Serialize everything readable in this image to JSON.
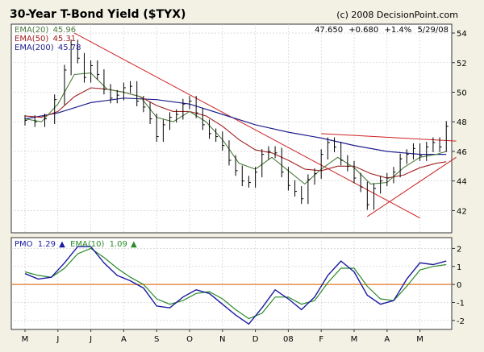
{
  "chart_data": [
    {
      "type": "line",
      "title": "30-Year T-Bond Yield ($TYX)",
      "copyright": "(c) 2008 DecisionPoint.com",
      "quote": {
        "last": "47.650",
        "change": "+0.680",
        "percent": "+1.4%",
        "date": "5/29/08"
      },
      "legend": [
        {
          "name": "EMA(20)",
          "value": "45.96",
          "color": "#4a7a3a"
        },
        {
          "name": "EMA(50)",
          "value": "45.31",
          "color": "#a02020"
        },
        {
          "name": "EMA(200)",
          "value": "45.78",
          "color": "#202090"
        }
      ],
      "x_months": [
        "M",
        "J",
        "J",
        "A",
        "S",
        "O",
        "N",
        "D",
        "08",
        "F",
        "M",
        "A",
        "M"
      ],
      "ylim": [
        40.5,
        54.6
      ],
      "y_ticks": [
        42,
        44,
        46,
        48,
        50,
        52,
        54
      ],
      "price_series": [
        {
          "t": 0,
          "y": 48.1
        },
        {
          "t": 0.3,
          "y": 48.0
        },
        {
          "t": 0.6,
          "y": 48.2
        },
        {
          "t": 0.9,
          "y": 49.5
        },
        {
          "t": 1.2,
          "y": 51.5
        },
        {
          "t": 1.4,
          "y": 53.2
        },
        {
          "t": 1.6,
          "y": 52.3
        },
        {
          "t": 1.8,
          "y": 51.0
        },
        {
          "t": 2.0,
          "y": 51.8
        },
        {
          "t": 2.2,
          "y": 51.2
        },
        {
          "t": 2.4,
          "y": 50.2
        },
        {
          "t": 2.6,
          "y": 49.6
        },
        {
          "t": 2.8,
          "y": 49.8
        },
        {
          "t": 3.0,
          "y": 50.3
        },
        {
          "t": 3.2,
          "y": 50.4
        },
        {
          "t": 3.4,
          "y": 49.4
        },
        {
          "t": 3.6,
          "y": 49.0
        },
        {
          "t": 3.8,
          "y": 48.2
        },
        {
          "t": 4.0,
          "y": 47.0
        },
        {
          "t": 4.2,
          "y": 47.8
        },
        {
          "t": 4.4,
          "y": 48.3
        },
        {
          "t": 4.6,
          "y": 48.5
        },
        {
          "t": 4.8,
          "y": 49.2
        },
        {
          "t": 5.0,
          "y": 49.4
        },
        {
          "t": 5.2,
          "y": 48.6
        },
        {
          "t": 5.4,
          "y": 47.8
        },
        {
          "t": 5.6,
          "y": 47.2
        },
        {
          "t": 5.8,
          "y": 47.0
        },
        {
          "t": 6.0,
          "y": 46.4
        },
        {
          "t": 6.2,
          "y": 45.4
        },
        {
          "t": 6.4,
          "y": 44.7
        },
        {
          "t": 6.6,
          "y": 44.0
        },
        {
          "t": 6.8,
          "y": 43.9
        },
        {
          "t": 7.0,
          "y": 44.6
        },
        {
          "t": 7.2,
          "y": 45.8
        },
        {
          "t": 7.4,
          "y": 46.0
        },
        {
          "t": 7.6,
          "y": 45.9
        },
        {
          "t": 7.8,
          "y": 44.6
        },
        {
          "t": 8.0,
          "y": 43.7
        },
        {
          "t": 8.2,
          "y": 43.3
        },
        {
          "t": 8.4,
          "y": 42.8
        },
        {
          "t": 8.6,
          "y": 44.1
        },
        {
          "t": 8.8,
          "y": 44.5
        },
        {
          "t": 9.0,
          "y": 45.8
        },
        {
          "t": 9.2,
          "y": 46.6
        },
        {
          "t": 9.4,
          "y": 46.3
        },
        {
          "t": 9.6,
          "y": 45.4
        },
        {
          "t": 9.8,
          "y": 45.0
        },
        {
          "t": 10.0,
          "y": 44.2
        },
        {
          "t": 10.2,
          "y": 43.6
        },
        {
          "t": 10.4,
          "y": 42.4
        },
        {
          "t": 10.6,
          "y": 43.5
        },
        {
          "t": 10.8,
          "y": 44.0
        },
        {
          "t": 11.0,
          "y": 44.2
        },
        {
          "t": 11.2,
          "y": 44.6
        },
        {
          "t": 11.4,
          "y": 45.5
        },
        {
          "t": 11.6,
          "y": 45.8
        },
        {
          "t": 11.8,
          "y": 46.2
        },
        {
          "t": 12.0,
          "y": 45.7
        },
        {
          "t": 12.2,
          "y": 46.3
        },
        {
          "t": 12.4,
          "y": 46.6
        },
        {
          "t": 12.6,
          "y": 46.3
        },
        {
          "t": 12.8,
          "y": 47.7
        }
      ],
      "ema20": [
        {
          "t": 0,
          "y": 48.2
        },
        {
          "t": 0.5,
          "y": 48.0
        },
        {
          "t": 1.0,
          "y": 49.2
        },
        {
          "t": 1.5,
          "y": 51.2
        },
        {
          "t": 2.0,
          "y": 51.3
        },
        {
          "t": 2.5,
          "y": 50.2
        },
        {
          "t": 3.0,
          "y": 50.0
        },
        {
          "t": 3.5,
          "y": 49.7
        },
        {
          "t": 4.0,
          "y": 48.3
        },
        {
          "t": 4.5,
          "y": 48.0
        },
        {
          "t": 5.0,
          "y": 48.7
        },
        {
          "t": 5.5,
          "y": 48.0
        },
        {
          "t": 6.0,
          "y": 46.8
        },
        {
          "t": 6.5,
          "y": 45.2
        },
        {
          "t": 7.0,
          "y": 44.8
        },
        {
          "t": 7.5,
          "y": 45.6
        },
        {
          "t": 8.0,
          "y": 44.7
        },
        {
          "t": 8.5,
          "y": 43.8
        },
        {
          "t": 9.0,
          "y": 44.8
        },
        {
          "t": 9.5,
          "y": 45.6
        },
        {
          "t": 10.0,
          "y": 44.9
        },
        {
          "t": 10.5,
          "y": 43.8
        },
        {
          "t": 11.0,
          "y": 43.9
        },
        {
          "t": 11.5,
          "y": 44.9
        },
        {
          "t": 12.0,
          "y": 45.6
        },
        {
          "t": 12.5,
          "y": 45.8
        },
        {
          "t": 12.8,
          "y": 46.0
        }
      ],
      "ema50": [
        {
          "t": 0,
          "y": 48.4
        },
        {
          "t": 0.5,
          "y": 48.3
        },
        {
          "t": 1.0,
          "y": 48.7
        },
        {
          "t": 1.5,
          "y": 49.7
        },
        {
          "t": 2.0,
          "y": 50.3
        },
        {
          "t": 2.5,
          "y": 50.2
        },
        {
          "t": 3.0,
          "y": 50.0
        },
        {
          "t": 3.5,
          "y": 49.7
        },
        {
          "t": 4.0,
          "y": 49.1
        },
        {
          "t": 4.5,
          "y": 48.7
        },
        {
          "t": 5.0,
          "y": 48.7
        },
        {
          "t": 5.5,
          "y": 48.4
        },
        {
          "t": 6.0,
          "y": 47.7
        },
        {
          "t": 6.5,
          "y": 46.8
        },
        {
          "t": 7.0,
          "y": 46.1
        },
        {
          "t": 7.5,
          "y": 45.9
        },
        {
          "t": 8.0,
          "y": 45.4
        },
        {
          "t": 8.5,
          "y": 44.8
        },
        {
          "t": 9.0,
          "y": 44.7
        },
        {
          "t": 9.5,
          "y": 45.0
        },
        {
          "t": 10.0,
          "y": 45.0
        },
        {
          "t": 10.5,
          "y": 44.5
        },
        {
          "t": 11.0,
          "y": 44.2
        },
        {
          "t": 11.5,
          "y": 44.4
        },
        {
          "t": 12.0,
          "y": 44.9
        },
        {
          "t": 12.5,
          "y": 45.2
        },
        {
          "t": 12.8,
          "y": 45.3
        }
      ],
      "ema200": [
        {
          "t": 0,
          "y": 48.2
        },
        {
          "t": 1.0,
          "y": 48.6
        },
        {
          "t": 2.0,
          "y": 49.3
        },
        {
          "t": 3.0,
          "y": 49.6
        },
        {
          "t": 4.0,
          "y": 49.5
        },
        {
          "t": 5.0,
          "y": 49.2
        },
        {
          "t": 6.0,
          "y": 48.5
        },
        {
          "t": 7.0,
          "y": 47.8
        },
        {
          "t": 8.0,
          "y": 47.3
        },
        {
          "t": 9.0,
          "y": 46.9
        },
        {
          "t": 10.0,
          "y": 46.4
        },
        {
          "t": 11.0,
          "y": 46.0
        },
        {
          "t": 12.0,
          "y": 45.8
        },
        {
          "t": 12.8,
          "y": 45.8
        }
      ],
      "trendlines": [
        {
          "from": {
            "t": 1.5,
            "y": 54.0
          },
          "to": {
            "t": 12.0,
            "y": 41.5
          }
        },
        {
          "from": {
            "t": 9.0,
            "y": 47.2
          },
          "to": {
            "t": 13.1,
            "y": 46.7
          }
        },
        {
          "from": {
            "t": 10.4,
            "y": 41.6
          },
          "to": {
            "t": 13.1,
            "y": 45.6
          }
        }
      ]
    },
    {
      "type": "line",
      "legend": [
        {
          "name": "PMO",
          "value": "1.29",
          "color": "#1a1aa0"
        },
        {
          "name": "EMA(10)",
          "value": "1.09",
          "color": "#2a8a2a"
        }
      ],
      "ylim": [
        -2.5,
        2.6
      ],
      "y_ticks": [
        2,
        1,
        0,
        -1,
        -2
      ],
      "zero_line_color": "#e07820",
      "pmo": [
        {
          "t": 0,
          "y": 0.6
        },
        {
          "t": 0.4,
          "y": 0.3
        },
        {
          "t": 0.8,
          "y": 0.4
        },
        {
          "t": 1.2,
          "y": 1.2
        },
        {
          "t": 1.6,
          "y": 2.1
        },
        {
          "t": 2.0,
          "y": 2.1
        },
        {
          "t": 2.4,
          "y": 1.2
        },
        {
          "t": 2.8,
          "y": 0.5
        },
        {
          "t": 3.2,
          "y": 0.2
        },
        {
          "t": 3.6,
          "y": -0.2
        },
        {
          "t": 4.0,
          "y": -1.2
        },
        {
          "t": 4.4,
          "y": -1.3
        },
        {
          "t": 4.8,
          "y": -0.7
        },
        {
          "t": 5.2,
          "y": -0.3
        },
        {
          "t": 5.6,
          "y": -0.5
        },
        {
          "t": 6.0,
          "y": -1.1
        },
        {
          "t": 6.4,
          "y": -1.7
        },
        {
          "t": 6.8,
          "y": -2.2
        },
        {
          "t": 7.2,
          "y": -1.3
        },
        {
          "t": 7.6,
          "y": -0.3
        },
        {
          "t": 8.0,
          "y": -0.8
        },
        {
          "t": 8.4,
          "y": -1.4
        },
        {
          "t": 8.8,
          "y": -0.7
        },
        {
          "t": 9.2,
          "y": 0.5
        },
        {
          "t": 9.6,
          "y": 1.3
        },
        {
          "t": 10.0,
          "y": 0.7
        },
        {
          "t": 10.4,
          "y": -0.6
        },
        {
          "t": 10.8,
          "y": -1.1
        },
        {
          "t": 11.2,
          "y": -0.9
        },
        {
          "t": 11.6,
          "y": 0.3
        },
        {
          "t": 12.0,
          "y": 1.2
        },
        {
          "t": 12.4,
          "y": 1.1
        },
        {
          "t": 12.8,
          "y": 1.3
        }
      ],
      "ema10": [
        {
          "t": 0,
          "y": 0.7
        },
        {
          "t": 0.4,
          "y": 0.5
        },
        {
          "t": 0.8,
          "y": 0.4
        },
        {
          "t": 1.2,
          "y": 0.9
        },
        {
          "t": 1.6,
          "y": 1.7
        },
        {
          "t": 2.0,
          "y": 2.0
        },
        {
          "t": 2.4,
          "y": 1.5
        },
        {
          "t": 2.8,
          "y": 0.9
        },
        {
          "t": 3.2,
          "y": 0.4
        },
        {
          "t": 3.6,
          "y": 0.0
        },
        {
          "t": 4.0,
          "y": -0.8
        },
        {
          "t": 4.4,
          "y": -1.1
        },
        {
          "t": 4.8,
          "y": -0.9
        },
        {
          "t": 5.2,
          "y": -0.5
        },
        {
          "t": 5.6,
          "y": -0.4
        },
        {
          "t": 6.0,
          "y": -0.8
        },
        {
          "t": 6.4,
          "y": -1.4
        },
        {
          "t": 6.8,
          "y": -1.9
        },
        {
          "t": 7.2,
          "y": -1.6
        },
        {
          "t": 7.6,
          "y": -0.7
        },
        {
          "t": 8.0,
          "y": -0.7
        },
        {
          "t": 8.4,
          "y": -1.1
        },
        {
          "t": 8.8,
          "y": -0.9
        },
        {
          "t": 9.2,
          "y": 0.1
        },
        {
          "t": 9.6,
          "y": 0.9
        },
        {
          "t": 10.0,
          "y": 0.9
        },
        {
          "t": 10.4,
          "y": -0.1
        },
        {
          "t": 10.8,
          "y": -0.8
        },
        {
          "t": 11.2,
          "y": -0.9
        },
        {
          "t": 11.6,
          "y": -0.1
        },
        {
          "t": 12.0,
          "y": 0.8
        },
        {
          "t": 12.4,
          "y": 1.0
        },
        {
          "t": 12.8,
          "y": 1.1
        }
      ]
    }
  ]
}
